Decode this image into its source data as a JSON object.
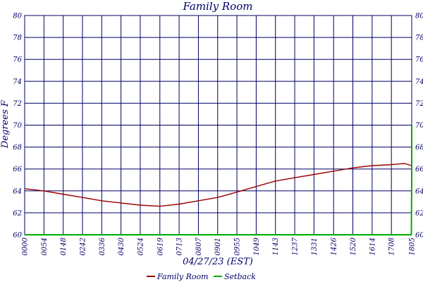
{
  "chart_data": {
    "type": "line",
    "title": "Family Room",
    "xlabel": "04/27/23 (EST)",
    "ylabel": "Degrees F",
    "ylim": [
      60,
      80
    ],
    "y_ticks": [
      60,
      62,
      64,
      66,
      68,
      70,
      72,
      74,
      76,
      78,
      80
    ],
    "x_ticks": [
      "0000",
      "0054",
      "0148",
      "0242",
      "0336",
      "0430",
      "0524",
      "0619",
      "0713",
      "0807",
      "0901",
      "0955",
      "1049",
      "1143",
      "1237",
      "1331",
      "1426",
      "1520",
      "1614",
      "1708",
      "1805"
    ],
    "x_range": [
      "0000",
      "1805"
    ],
    "grid": true,
    "legend_position": "bottom-center",
    "series": [
      {
        "name": "Family Room",
        "color": "#990000",
        "x": [
          "0000",
          "0054",
          "0148",
          "0242",
          "0336",
          "0430",
          "0524",
          "0619",
          "0713",
          "0807",
          "0901",
          "0955",
          "1049",
          "1143",
          "1237",
          "1331",
          "1426",
          "1520",
          "1614",
          "1708",
          "1745",
          "1805"
        ],
        "values": [
          64.2,
          64.0,
          63.7,
          63.4,
          63.1,
          62.9,
          62.7,
          62.6,
          62.8,
          63.1,
          63.4,
          63.9,
          64.4,
          64.9,
          65.2,
          65.5,
          65.8,
          66.1,
          66.3,
          66.4,
          66.5,
          66.3
        ]
      },
      {
        "name": "Setback",
        "color": "#00aa00",
        "x": [
          "0000",
          "1804",
          "1805",
          "1805"
        ],
        "values": [
          60,
          60,
          65.2,
          70
        ]
      }
    ]
  }
}
